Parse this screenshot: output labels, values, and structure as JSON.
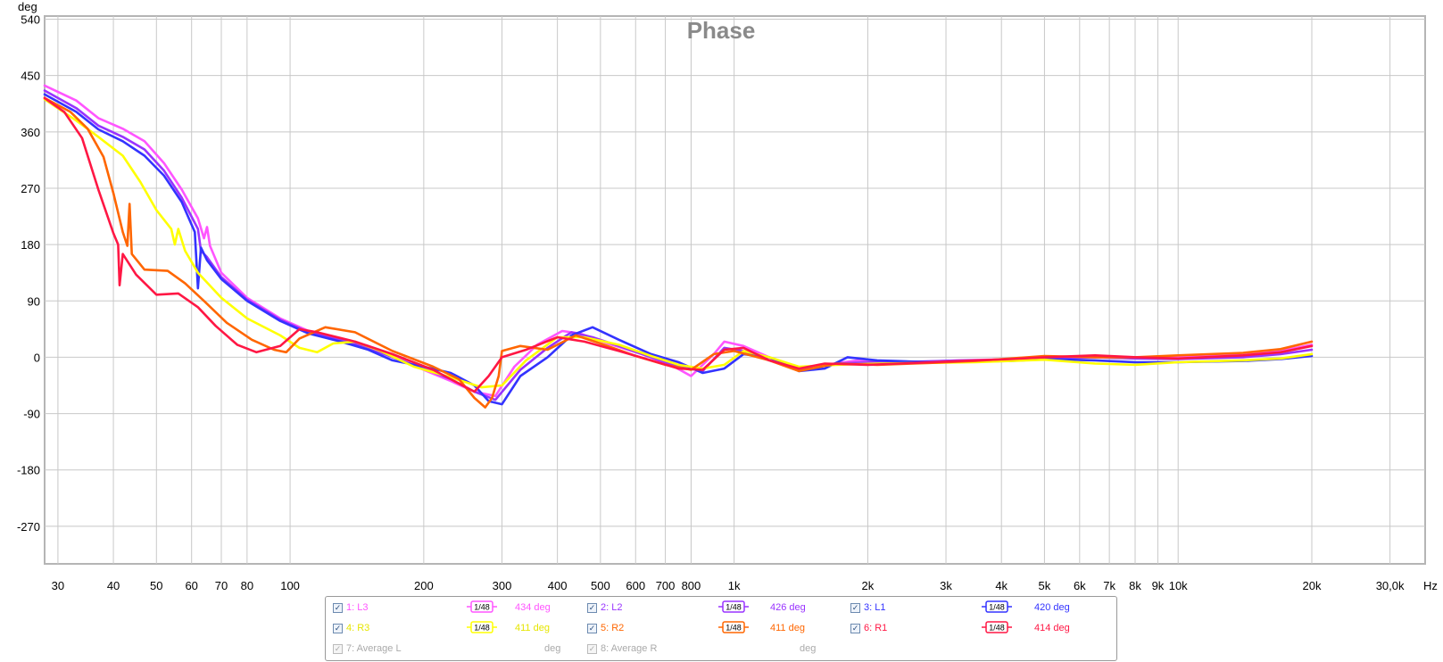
{
  "chart_data": {
    "type": "line",
    "title": "Phase",
    "ylabel": "deg",
    "xlabel": "Hz",
    "xscale": "log",
    "xlim": [
      28,
      36000
    ],
    "ylim": [
      -330,
      545
    ],
    "y_ticks": [
      540,
      450,
      360,
      270,
      180,
      90,
      0,
      -90,
      -180,
      -270
    ],
    "y_tick_labels": [
      "540",
      "450",
      "360",
      "270",
      "180",
      "90",
      "0",
      "-90",
      "-180",
      "-270"
    ],
    "x_ticks": [
      30,
      40,
      50,
      60,
      70,
      80,
      100,
      200,
      300,
      400,
      500,
      600,
      700,
      800,
      1000,
      2000,
      3000,
      4000,
      5000,
      6000,
      7000,
      8000,
      9000,
      10000,
      20000,
      30000
    ],
    "x_tick_labels": [
      "30",
      "40",
      "50",
      "60",
      "70",
      "80",
      "100",
      "200",
      "300",
      "400",
      "500",
      "600",
      "700",
      "800",
      "1k",
      "2k",
      "3k",
      "4k",
      "5k",
      "6k",
      "7k",
      "8k",
      "9k",
      "10k",
      "20k",
      "30,0k"
    ],
    "x_unit_label": "Hz",
    "grid": true,
    "series": [
      {
        "name": "1: L3",
        "color": "#ff55ff",
        "value": "434 deg",
        "smoothing": "1/48",
        "points": [
          [
            28,
            434
          ],
          [
            33,
            410
          ],
          [
            37,
            382
          ],
          [
            42,
            365
          ],
          [
            47,
            345
          ],
          [
            52,
            310
          ],
          [
            57,
            268
          ],
          [
            62,
            222
          ],
          [
            64,
            190
          ],
          [
            65,
            208
          ],
          [
            66,
            178
          ],
          [
            70,
            135
          ],
          [
            80,
            95
          ],
          [
            95,
            62
          ],
          [
            110,
            42
          ],
          [
            130,
            30
          ],
          [
            150,
            18
          ],
          [
            170,
            2
          ],
          [
            200,
            -20
          ],
          [
            230,
            -38
          ],
          [
            260,
            -55
          ],
          [
            290,
            -62
          ],
          [
            320,
            -15
          ],
          [
            360,
            20
          ],
          [
            410,
            42
          ],
          [
            450,
            38
          ],
          [
            520,
            22
          ],
          [
            620,
            5
          ],
          [
            720,
            -12
          ],
          [
            800,
            -30
          ],
          [
            900,
            5
          ],
          [
            950,
            25
          ],
          [
            1050,
            18
          ],
          [
            1200,
            0
          ],
          [
            1400,
            -18
          ],
          [
            1600,
            -12
          ],
          [
            1900,
            -5
          ],
          [
            2500,
            -8
          ],
          [
            3200,
            -5
          ],
          [
            4200,
            -3
          ],
          [
            5000,
            0
          ],
          [
            6500,
            2
          ],
          [
            8000,
            0
          ],
          [
            10000,
            0
          ],
          [
            14000,
            5
          ],
          [
            17000,
            10
          ],
          [
            20000,
            20
          ]
        ]
      },
      {
        "name": "2: L2",
        "color": "#9933ff",
        "value": "426 deg",
        "smoothing": "1/48",
        "points": [
          [
            28,
            426
          ],
          [
            33,
            398
          ],
          [
            37,
            370
          ],
          [
            42,
            352
          ],
          [
            47,
            332
          ],
          [
            52,
            298
          ],
          [
            57,
            255
          ],
          [
            62,
            205
          ],
          [
            63,
            170
          ],
          [
            65,
            160
          ],
          [
            70,
            128
          ],
          [
            80,
            92
          ],
          [
            95,
            60
          ],
          [
            110,
            40
          ],
          [
            130,
            28
          ],
          [
            150,
            15
          ],
          [
            170,
            0
          ],
          [
            200,
            -18
          ],
          [
            230,
            -35
          ],
          [
            260,
            -55
          ],
          [
            290,
            -68
          ],
          [
            330,
            -20
          ],
          [
            380,
            15
          ],
          [
            430,
            40
          ],
          [
            480,
            32
          ],
          [
            550,
            18
          ],
          [
            650,
            0
          ],
          [
            750,
            -15
          ],
          [
            850,
            -22
          ],
          [
            950,
            15
          ],
          [
            1050,
            10
          ],
          [
            1200,
            -5
          ],
          [
            1400,
            -20
          ],
          [
            1700,
            -10
          ],
          [
            2000,
            -8
          ],
          [
            2600,
            -7
          ],
          [
            3300,
            -5
          ],
          [
            4200,
            -4
          ],
          [
            5000,
            -2
          ],
          [
            6500,
            0
          ],
          [
            8000,
            -2
          ],
          [
            10000,
            -3
          ],
          [
            14000,
            0
          ],
          [
            17000,
            5
          ],
          [
            20000,
            12
          ]
        ]
      },
      {
        "name": "3: L1",
        "color": "#3333ff",
        "value": "420 deg",
        "smoothing": "1/48",
        "points": [
          [
            28,
            420
          ],
          [
            33,
            392
          ],
          [
            37,
            364
          ],
          [
            42,
            345
          ],
          [
            47,
            322
          ],
          [
            52,
            290
          ],
          [
            57,
            248
          ],
          [
            61,
            200
          ],
          [
            62,
            110
          ],
          [
            63,
            175
          ],
          [
            65,
            155
          ],
          [
            70,
            125
          ],
          [
            80,
            90
          ],
          [
            95,
            58
          ],
          [
            110,
            38
          ],
          [
            130,
            25
          ],
          [
            150,
            12
          ],
          [
            170,
            -5
          ],
          [
            200,
            -15
          ],
          [
            230,
            -25
          ],
          [
            260,
            -45
          ],
          [
            280,
            -70
          ],
          [
            300,
            -75
          ],
          [
            330,
            -30
          ],
          [
            380,
            0
          ],
          [
            430,
            35
          ],
          [
            480,
            48
          ],
          [
            550,
            28
          ],
          [
            650,
            5
          ],
          [
            750,
            -8
          ],
          [
            850,
            -25
          ],
          [
            950,
            -18
          ],
          [
            1050,
            5
          ],
          [
            1200,
            0
          ],
          [
            1400,
            -22
          ],
          [
            1600,
            -18
          ],
          [
            1800,
            0
          ],
          [
            2100,
            -5
          ],
          [
            2800,
            -8
          ],
          [
            3500,
            -7
          ],
          [
            4200,
            -6
          ],
          [
            5000,
            -3
          ],
          [
            6500,
            -5
          ],
          [
            8000,
            -8
          ],
          [
            10000,
            -8
          ],
          [
            14000,
            -6
          ],
          [
            17000,
            -3
          ],
          [
            20000,
            2
          ]
        ]
      },
      {
        "name": "4: R3",
        "color": "#ffff00",
        "value": "411 deg",
        "smoothing": "1/48",
        "points": [
          [
            28,
            412
          ],
          [
            33,
            378
          ],
          [
            37,
            352
          ],
          [
            42,
            322
          ],
          [
            46,
            280
          ],
          [
            50,
            235
          ],
          [
            54,
            205
          ],
          [
            55,
            180
          ],
          [
            56,
            205
          ],
          [
            58,
            170
          ],
          [
            62,
            135
          ],
          [
            70,
            95
          ],
          [
            80,
            62
          ],
          [
            95,
            35
          ],
          [
            105,
            15
          ],
          [
            115,
            8
          ],
          [
            125,
            22
          ],
          [
            140,
            25
          ],
          [
            160,
            10
          ],
          [
            190,
            -15
          ],
          [
            230,
            -32
          ],
          [
            270,
            -48
          ],
          [
            300,
            -45
          ],
          [
            340,
            -5
          ],
          [
            400,
            32
          ],
          [
            460,
            32
          ],
          [
            550,
            20
          ],
          [
            650,
            2
          ],
          [
            750,
            -12
          ],
          [
            850,
            -18
          ],
          [
            950,
            -12
          ],
          [
            1050,
            10
          ],
          [
            1200,
            0
          ],
          [
            1400,
            -15
          ],
          [
            1700,
            -12
          ],
          [
            2100,
            -10
          ],
          [
            2800,
            -9
          ],
          [
            3500,
            -8
          ],
          [
            4200,
            -6
          ],
          [
            5000,
            -4
          ],
          [
            6500,
            -10
          ],
          [
            8000,
            -12
          ],
          [
            10000,
            -8
          ],
          [
            14000,
            -5
          ],
          [
            17000,
            -2
          ],
          [
            20000,
            5
          ]
        ]
      },
      {
        "name": "5: R2",
        "color": "#ff6600",
        "value": "411 deg",
        "smoothing": "1/48",
        "points": [
          [
            28,
            414
          ],
          [
            32,
            392
          ],
          [
            35,
            365
          ],
          [
            38,
            320
          ],
          [
            40,
            262
          ],
          [
            42,
            200
          ],
          [
            43,
            178
          ],
          [
            43.5,
            245
          ],
          [
            44,
            165
          ],
          [
            47,
            140
          ],
          [
            53,
            138
          ],
          [
            58,
            118
          ],
          [
            64,
            90
          ],
          [
            72,
            55
          ],
          [
            82,
            28
          ],
          [
            92,
            12
          ],
          [
            98,
            8
          ],
          [
            105,
            30
          ],
          [
            120,
            48
          ],
          [
            140,
            40
          ],
          [
            170,
            10
          ],
          [
            210,
            -15
          ],
          [
            240,
            -35
          ],
          [
            260,
            -65
          ],
          [
            275,
            -80
          ],
          [
            285,
            -65
          ],
          [
            295,
            -30
          ],
          [
            300,
            10
          ],
          [
            330,
            18
          ],
          [
            380,
            12
          ],
          [
            440,
            35
          ],
          [
            500,
            22
          ],
          [
            600,
            2
          ],
          [
            700,
            -12
          ],
          [
            800,
            -20
          ],
          [
            900,
            5
          ],
          [
            1000,
            10
          ],
          [
            1200,
            -5
          ],
          [
            1400,
            -22
          ],
          [
            1700,
            -10
          ],
          [
            2100,
            -12
          ],
          [
            2800,
            -9
          ],
          [
            3500,
            -6
          ],
          [
            4200,
            -2
          ],
          [
            5000,
            2
          ],
          [
            6500,
            0
          ],
          [
            8000,
            0
          ],
          [
            10000,
            3
          ],
          [
            14000,
            7
          ],
          [
            17000,
            13
          ],
          [
            20000,
            25
          ]
        ]
      },
      {
        "name": "6: R1",
        "color": "#ff1744",
        "value": "414 deg",
        "smoothing": "1/48",
        "points": [
          [
            28,
            414
          ],
          [
            31,
            392
          ],
          [
            34,
            350
          ],
          [
            37,
            268
          ],
          [
            40,
            198
          ],
          [
            41,
            180
          ],
          [
            41.3,
            115
          ],
          [
            42,
            165
          ],
          [
            45,
            132
          ],
          [
            50,
            100
          ],
          [
            56,
            102
          ],
          [
            62,
            80
          ],
          [
            68,
            50
          ],
          [
            76,
            20
          ],
          [
            84,
            8
          ],
          [
            95,
            18
          ],
          [
            105,
            45
          ],
          [
            115,
            40
          ],
          [
            140,
            25
          ],
          [
            170,
            5
          ],
          [
            210,
            -20
          ],
          [
            240,
            -42
          ],
          [
            260,
            -55
          ],
          [
            280,
            -30
          ],
          [
            300,
            0
          ],
          [
            340,
            12
          ],
          [
            400,
            32
          ],
          [
            460,
            25
          ],
          [
            550,
            10
          ],
          [
            650,
            -5
          ],
          [
            750,
            -18
          ],
          [
            850,
            -20
          ],
          [
            950,
            12
          ],
          [
            1050,
            15
          ],
          [
            1200,
            -5
          ],
          [
            1400,
            -18
          ],
          [
            1600,
            -10
          ],
          [
            2000,
            -12
          ],
          [
            2800,
            -8
          ],
          [
            3500,
            -5
          ],
          [
            4200,
            -3
          ],
          [
            5000,
            0
          ],
          [
            6500,
            3
          ],
          [
            8000,
            0
          ],
          [
            10000,
            -2
          ],
          [
            14000,
            3
          ],
          [
            17000,
            8
          ],
          [
            20000,
            18
          ]
        ]
      }
    ],
    "extra_legend": [
      {
        "name": "7: Average L",
        "value": "deg"
      },
      {
        "name": "8: Average R",
        "value": "deg"
      }
    ]
  },
  "legend": {
    "smoothing_label_num": "1",
    "smoothing_label_den": "48"
  }
}
